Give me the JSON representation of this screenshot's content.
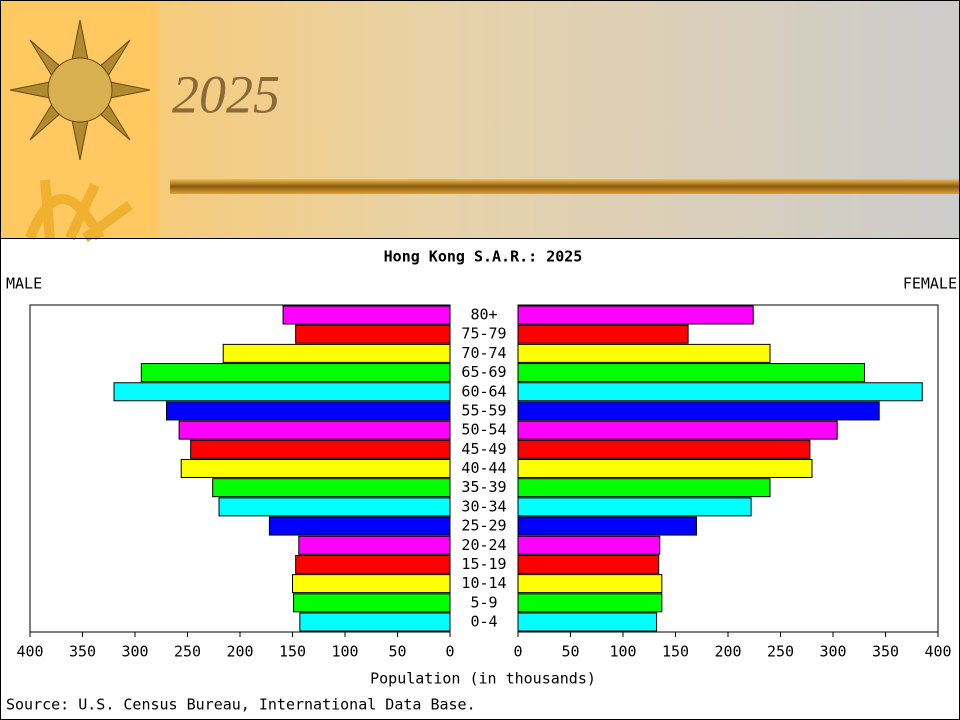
{
  "slide_title": "2025",
  "chart_data": {
    "type": "pyramid",
    "title": "Hong Kong S.A.R.: 2025",
    "xlabel": "Population (in thousands)",
    "source": "Source: U.S. Census Bureau, International Data Base.",
    "categories": [
      "0-4",
      "5-9",
      "10-14",
      "15-19",
      "20-24",
      "25-29",
      "30-34",
      "35-39",
      "40-44",
      "45-49",
      "50-54",
      "55-59",
      "60-64",
      "65-69",
      "70-74",
      "75-79",
      "80+"
    ],
    "colors": [
      "#00ffff",
      "#00ff00",
      "#ffff00",
      "#ff0000",
      "#ff00ff",
      "#0000ff",
      "#00ffff",
      "#00ff00",
      "#ffff00",
      "#ff0000",
      "#ff00ff",
      "#0000ff",
      "#00ffff",
      "#00ff00",
      "#ffff00",
      "#ff0000",
      "#ff00ff"
    ],
    "series": [
      {
        "name": "MALE",
        "values": [
          143,
          149,
          150,
          147,
          144,
          172,
          220,
          226,
          256,
          247,
          258,
          270,
          320,
          294,
          216,
          147,
          159
        ]
      },
      {
        "name": "FEMALE",
        "values": [
          132,
          137,
          137,
          134,
          135,
          170,
          222,
          240,
          280,
          278,
          304,
          344,
          385,
          330,
          240,
          162,
          224
        ]
      }
    ],
    "xlim": [
      0,
      400
    ],
    "xticks": [
      0,
      50,
      100,
      150,
      200,
      250,
      300,
      350,
      400
    ]
  }
}
